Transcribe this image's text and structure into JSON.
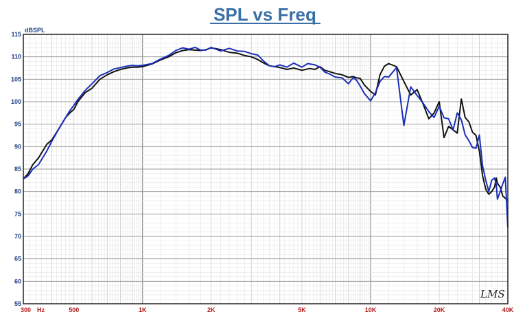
{
  "chart_data": {
    "type": "line",
    "title": "SPL vs Freq",
    "ylabel": "dBSPL",
    "xscale": "log",
    "xlim": [
      300,
      40000
    ],
    "ylim": [
      55,
      115
    ],
    "grid": true,
    "y_ticks": [
      115,
      110,
      105,
      100,
      95,
      90,
      85,
      80,
      75,
      70,
      65,
      60,
      55
    ],
    "x_tick_labels": [
      {
        "x": 300,
        "label": "300"
      },
      {
        "x": 500,
        "label": "500"
      },
      {
        "x": 1000,
        "label": "1K"
      },
      {
        "x": 2000,
        "label": "2K"
      },
      {
        "x": 5000,
        "label": "5K"
      },
      {
        "x": 10000,
        "label": "10K"
      },
      {
        "x": 20000,
        "label": "20K"
      },
      {
        "x": 40000,
        "label": "40K"
      }
    ],
    "x_unit": "Hz",
    "watermark": "LMS",
    "series": [
      {
        "color": "#111111",
        "points": [
          [
            300,
            82.8
          ],
          [
            315,
            84
          ],
          [
            330,
            86
          ],
          [
            350,
            87.5
          ],
          [
            380,
            90.5
          ],
          [
            400,
            91.5
          ],
          [
            430,
            94
          ],
          [
            460,
            96.5
          ],
          [
            480,
            97.5
          ],
          [
            500,
            98.3
          ],
          [
            520,
            100
          ],
          [
            560,
            102
          ],
          [
            600,
            103
          ],
          [
            650,
            105
          ],
          [
            700,
            106
          ],
          [
            750,
            106.7
          ],
          [
            800,
            107.2
          ],
          [
            850,
            107.5
          ],
          [
            900,
            107.7
          ],
          [
            950,
            107.7
          ],
          [
            1000,
            107.8
          ],
          [
            1100,
            108.4
          ],
          [
            1200,
            109.3
          ],
          [
            1300,
            110
          ],
          [
            1400,
            110.9
          ],
          [
            1500,
            111.4
          ],
          [
            1600,
            111.6
          ],
          [
            1700,
            111.5
          ],
          [
            1800,
            111.4
          ],
          [
            1900,
            111.6
          ],
          [
            2000,
            112
          ],
          [
            2100,
            111.8
          ],
          [
            2200,
            111.6
          ],
          [
            2400,
            111
          ],
          [
            2600,
            110.8
          ],
          [
            2800,
            110.3
          ],
          [
            3000,
            110
          ],
          [
            3200,
            109.4
          ],
          [
            3400,
            108.6
          ],
          [
            3600,
            108
          ],
          [
            3800,
            107.8
          ],
          [
            4000,
            107.6
          ],
          [
            4300,
            107.2
          ],
          [
            4600,
            107.5
          ],
          [
            5000,
            107
          ],
          [
            5400,
            107.4
          ],
          [
            5700,
            107.2
          ],
          [
            6000,
            107.8
          ],
          [
            6300,
            107
          ],
          [
            6600,
            106.7
          ],
          [
            7000,
            106.3
          ],
          [
            7500,
            106
          ],
          [
            8000,
            105.4
          ],
          [
            8400,
            105.6
          ],
          [
            8700,
            105.3
          ],
          [
            9000,
            105.2
          ],
          [
            9400,
            103.7
          ],
          [
            10000,
            102.3
          ],
          [
            10500,
            101.5
          ],
          [
            11000,
            106
          ],
          [
            11500,
            107.9
          ],
          [
            12000,
            108.5
          ],
          [
            13000,
            107.8
          ],
          [
            14000,
            104.5
          ],
          [
            15000,
            101.5
          ],
          [
            16000,
            102.7
          ],
          [
            17000,
            99.5
          ],
          [
            18000,
            96.2
          ],
          [
            19000,
            97.5
          ],
          [
            20000,
            100
          ],
          [
            21000,
            92
          ],
          [
            22000,
            94.5
          ],
          [
            24000,
            93
          ],
          [
            25000,
            100.6
          ],
          [
            26000,
            96.5
          ],
          [
            27000,
            95.5
          ],
          [
            28000,
            93.2
          ],
          [
            29000,
            92.5
          ],
          [
            30000,
            89
          ],
          [
            31000,
            83.5
          ],
          [
            32000,
            80.5
          ],
          [
            33000,
            79.4
          ],
          [
            34000,
            80
          ],
          [
            35000,
            81
          ],
          [
            35600,
            83
          ],
          [
            36000,
            81.8
          ],
          [
            37000,
            81
          ],
          [
            38000,
            79
          ],
          [
            39000,
            78.5
          ],
          [
            40000,
            78
          ]
        ]
      },
      {
        "color": "#1a2fb8",
        "points": [
          [
            300,
            82.8
          ],
          [
            315,
            83.5
          ],
          [
            330,
            85
          ],
          [
            350,
            86
          ],
          [
            380,
            89
          ],
          [
            400,
            91.2
          ],
          [
            430,
            94
          ],
          [
            460,
            96.5
          ],
          [
            480,
            98
          ],
          [
            500,
            99.2
          ],
          [
            520,
            100.5
          ],
          [
            560,
            102.5
          ],
          [
            600,
            104
          ],
          [
            650,
            105.8
          ],
          [
            700,
            106.5
          ],
          [
            750,
            107.3
          ],
          [
            800,
            107.6
          ],
          [
            850,
            107.9
          ],
          [
            900,
            108.1
          ],
          [
            950,
            108
          ],
          [
            1000,
            108.1
          ],
          [
            1100,
            108.5
          ],
          [
            1200,
            109.5
          ],
          [
            1300,
            110.3
          ],
          [
            1400,
            111.4
          ],
          [
            1500,
            112
          ],
          [
            1600,
            111.7
          ],
          [
            1700,
            112.1
          ],
          [
            1800,
            111.5
          ],
          [
            1900,
            111.5
          ],
          [
            2000,
            112.1
          ],
          [
            2200,
            111.3
          ],
          [
            2400,
            111.9
          ],
          [
            2600,
            111.3
          ],
          [
            2800,
            111.2
          ],
          [
            3000,
            110.7
          ],
          [
            3200,
            110.4
          ],
          [
            3400,
            109
          ],
          [
            3600,
            108
          ],
          [
            3800,
            107.8
          ],
          [
            4000,
            108.2
          ],
          [
            4300,
            107.7
          ],
          [
            4600,
            108.6
          ],
          [
            5000,
            107.7
          ],
          [
            5300,
            108.5
          ],
          [
            5700,
            108.2
          ],
          [
            6000,
            107.7
          ],
          [
            6300,
            106.6
          ],
          [
            6600,
            106.2
          ],
          [
            7000,
            105.5
          ],
          [
            7500,
            105.3
          ],
          [
            8000,
            104
          ],
          [
            8400,
            105.4
          ],
          [
            8700,
            104.7
          ],
          [
            9000,
            103.5
          ],
          [
            9400,
            101.8
          ],
          [
            10000,
            100.2
          ],
          [
            10500,
            102
          ],
          [
            11000,
            104.5
          ],
          [
            11500,
            105.6
          ],
          [
            12000,
            105.5
          ],
          [
            13000,
            107.6
          ],
          [
            14000,
            94.7
          ],
          [
            15000,
            103.3
          ],
          [
            16000,
            101.4
          ],
          [
            17000,
            99.7
          ],
          [
            18000,
            97.8
          ],
          [
            19000,
            96.5
          ],
          [
            20000,
            99
          ],
          [
            21000,
            96.4
          ],
          [
            22000,
            96.2
          ],
          [
            23000,
            93.7
          ],
          [
            24000,
            97.5
          ],
          [
            25000,
            96
          ],
          [
            26000,
            92.6
          ],
          [
            27000,
            91.3
          ],
          [
            28000,
            89.8
          ],
          [
            29000,
            89.6
          ],
          [
            30000,
            92.6
          ],
          [
            31000,
            85.7
          ],
          [
            32000,
            82.5
          ],
          [
            33000,
            80
          ],
          [
            34000,
            82.5
          ],
          [
            35000,
            83
          ],
          [
            35600,
            81.5
          ],
          [
            36000,
            78.3
          ],
          [
            37000,
            80
          ],
          [
            38000,
            81.7
          ],
          [
            39000,
            83.2
          ],
          [
            40000,
            72
          ]
        ]
      }
    ]
  }
}
